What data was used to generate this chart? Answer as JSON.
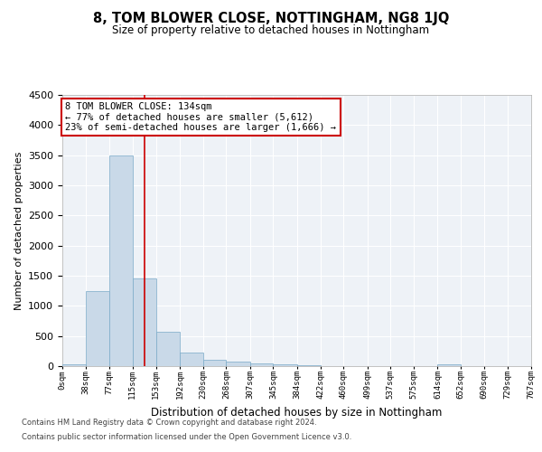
{
  "title": "8, TOM BLOWER CLOSE, NOTTINGHAM, NG8 1JQ",
  "subtitle": "Size of property relative to detached houses in Nottingham",
  "xlabel": "Distribution of detached houses by size in Nottingham",
  "ylabel": "Number of detached properties",
  "bar_color": "#c9d9e8",
  "bar_edge_color": "#7aaac8",
  "background_color": "#eef2f7",
  "annotation_box_color": "#ffffff",
  "annotation_border_color": "#cc0000",
  "vline_color": "#cc0000",
  "property_size": 134,
  "annotation_line1": "8 TOM BLOWER CLOSE: 134sqm",
  "annotation_line2": "← 77% of detached houses are smaller (5,612)",
  "annotation_line3": "23% of semi-detached houses are larger (1,666) →",
  "footer_line1": "Contains HM Land Registry data © Crown copyright and database right 2024.",
  "footer_line2": "Contains public sector information licensed under the Open Government Licence v3.0.",
  "bin_edges": [
    0,
    38,
    77,
    115,
    153,
    192,
    230,
    268,
    307,
    345,
    384,
    422,
    460,
    499,
    537,
    575,
    614,
    652,
    690,
    729,
    767
  ],
  "bin_counts": [
    28,
    1250,
    3500,
    1460,
    570,
    220,
    110,
    75,
    50,
    28,
    15,
    5,
    2,
    0,
    0,
    0,
    28,
    0,
    0,
    0
  ],
  "ylim": [
    0,
    4500
  ],
  "yticks": [
    0,
    500,
    1000,
    1500,
    2000,
    2500,
    3000,
    3500,
    4000,
    4500
  ]
}
